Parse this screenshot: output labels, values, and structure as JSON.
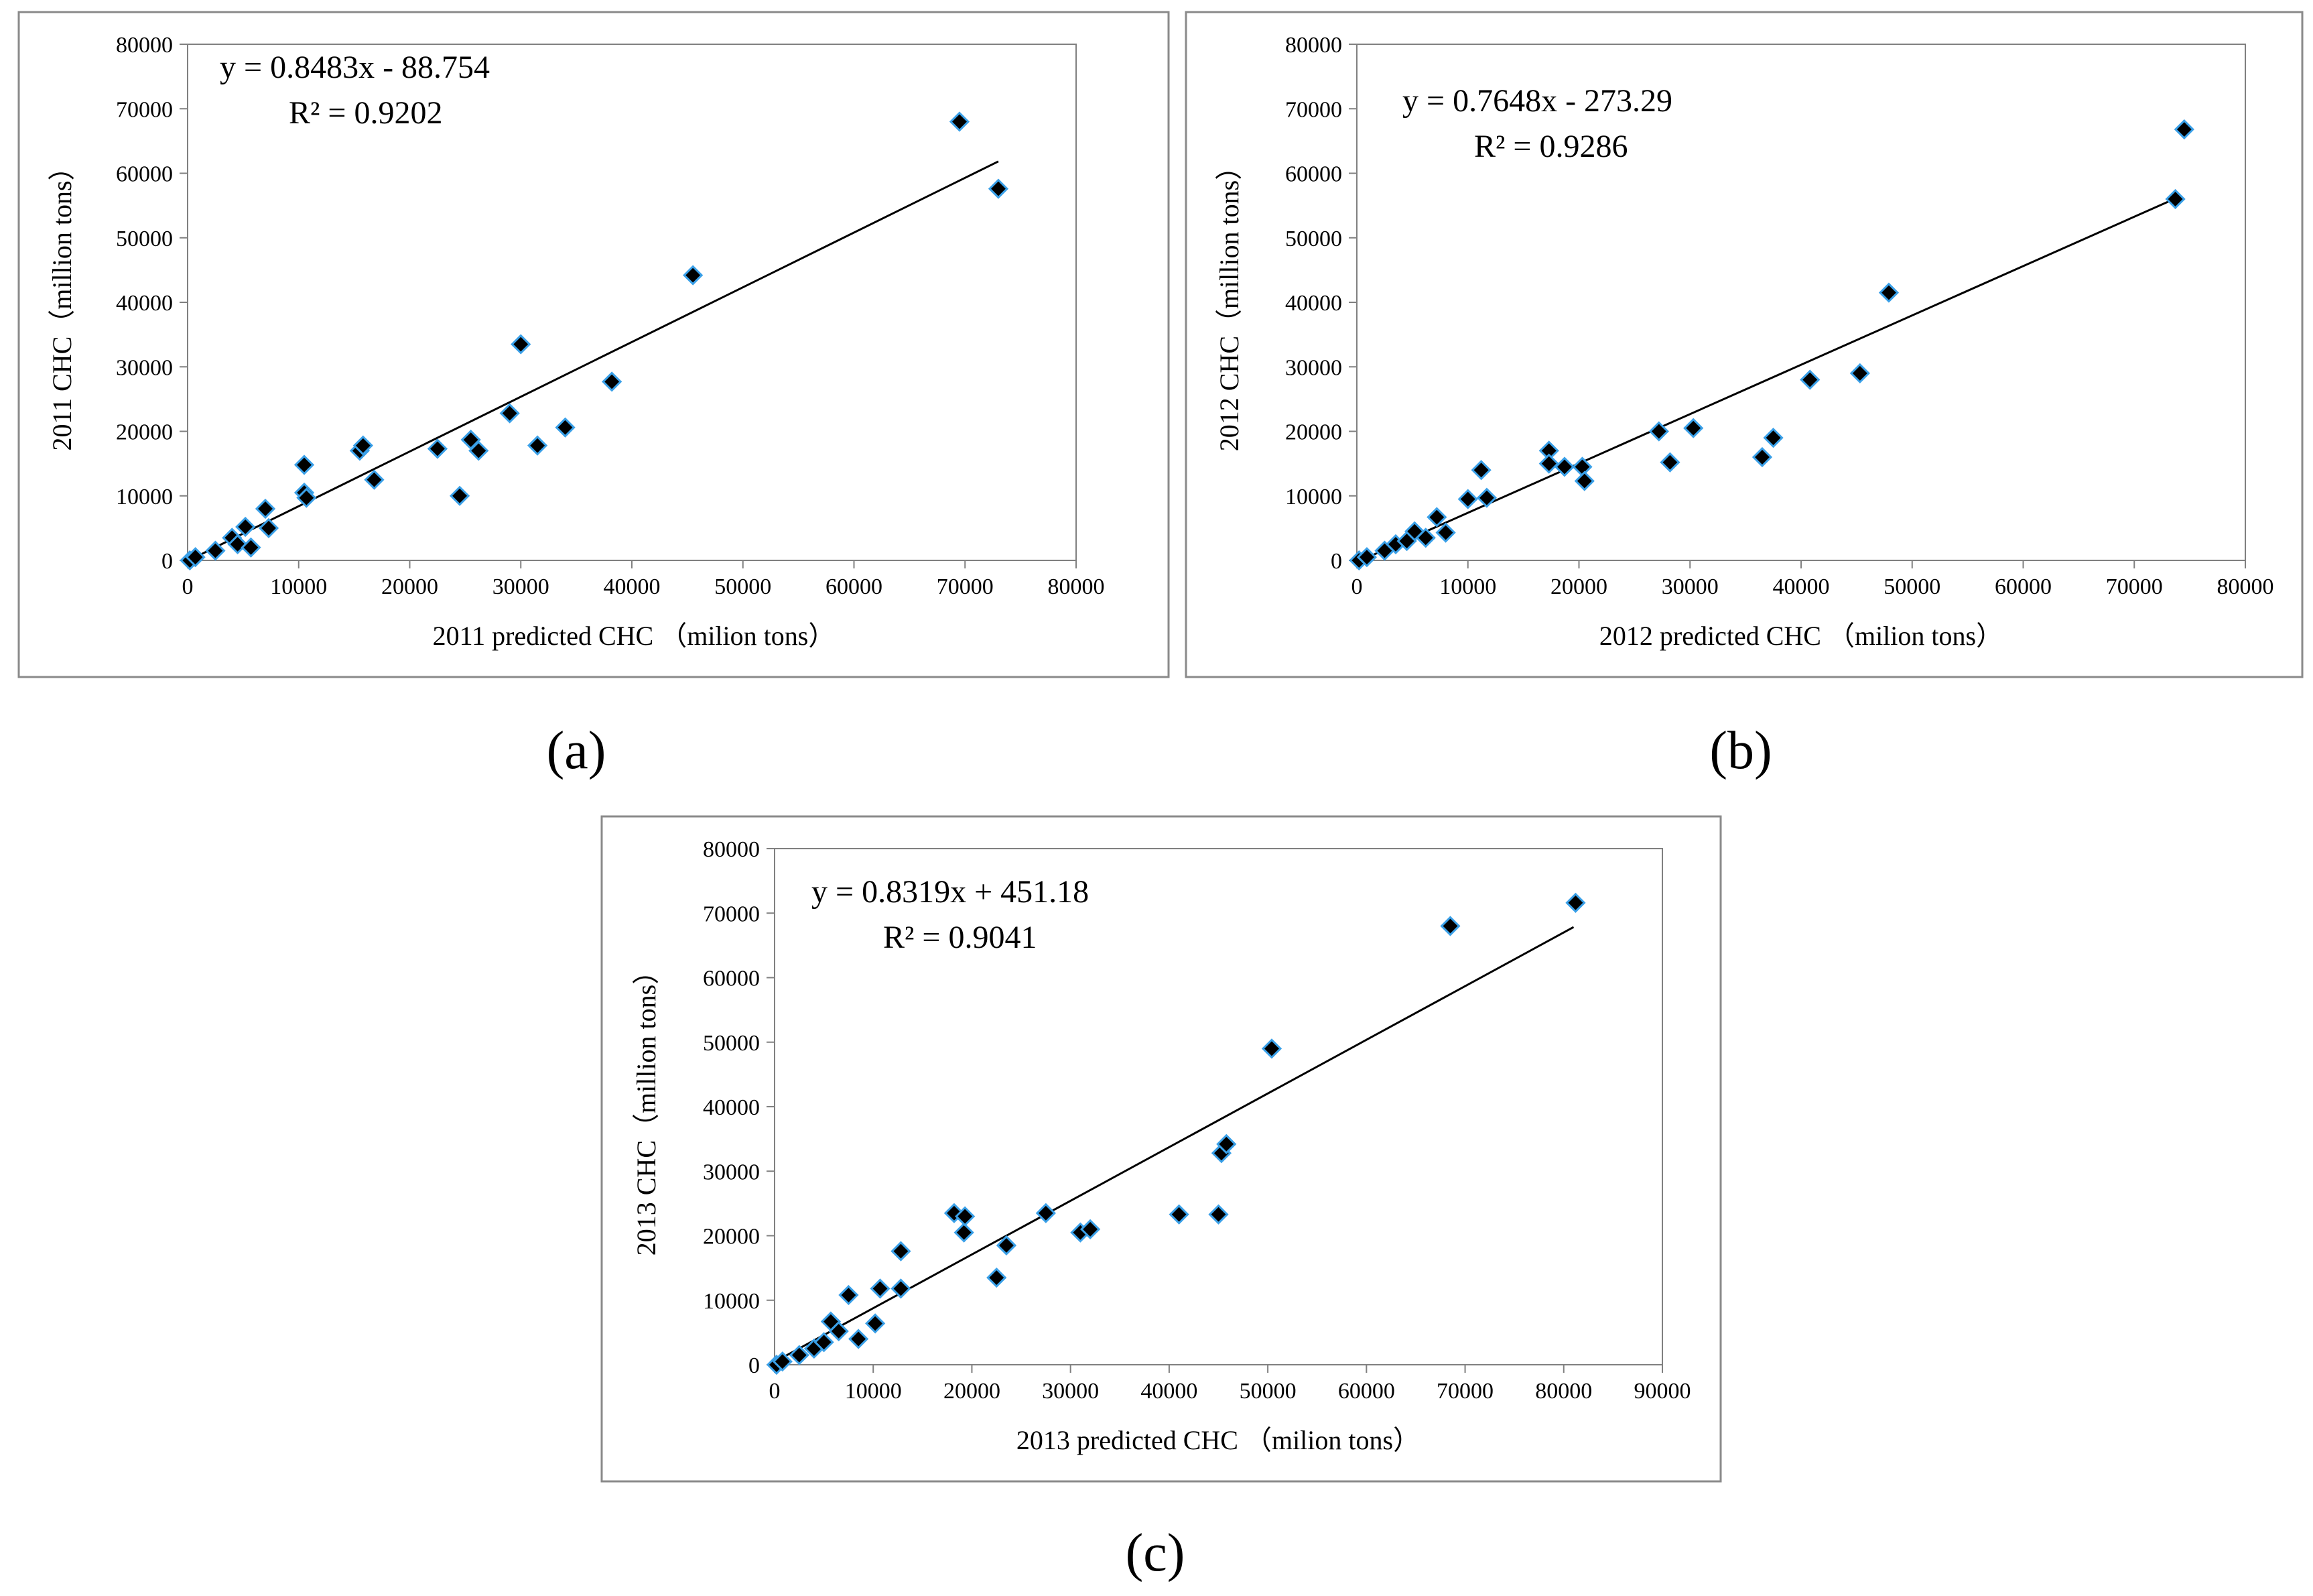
{
  "chart_data": [
    {
      "type": "scatter",
      "panel_label": "(a)",
      "equation": "y = 0.8483x - 88.754",
      "r_squared": "R² = 0.9202",
      "xlabel": "2011 predicted CHC （milion tons）",
      "ylabel": "2011 CHC（million tons）",
      "xlim": [
        0,
        80000
      ],
      "ylim": [
        0,
        80000
      ],
      "xticks": [
        "0",
        "10000",
        "20000",
        "30000",
        "40000",
        "50000",
        "60000",
        "70000",
        "80000"
      ],
      "yticks": [
        "0",
        "10000",
        "20000",
        "30000",
        "40000",
        "50000",
        "60000",
        "70000",
        "80000"
      ],
      "trendline": {
        "slope": 0.8483,
        "intercept": -88.754,
        "x_range": [
          0,
          73000
        ]
      },
      "points": [
        [
          200,
          0
        ],
        [
          700,
          500
        ],
        [
          2500,
          1500
        ],
        [
          4000,
          3500
        ],
        [
          4500,
          2500
        ],
        [
          5200,
          5200
        ],
        [
          5700,
          2000
        ],
        [
          7000,
          8000
        ],
        [
          7300,
          5000
        ],
        [
          10500,
          14800
        ],
        [
          10500,
          10500
        ],
        [
          10700,
          9700
        ],
        [
          15500,
          17000
        ],
        [
          15800,
          17800
        ],
        [
          16800,
          12500
        ],
        [
          22500,
          17300
        ],
        [
          24500,
          10000
        ],
        [
          25500,
          18700
        ],
        [
          26200,
          17000
        ],
        [
          29000,
          22800
        ],
        [
          30000,
          33500
        ],
        [
          31500,
          17800
        ],
        [
          34000,
          20600
        ],
        [
          38200,
          27700
        ],
        [
          45500,
          44200
        ],
        [
          69500,
          68000
        ],
        [
          73000,
          57600
        ]
      ]
    },
    {
      "type": "scatter",
      "panel_label": "(b)",
      "equation": "y = 0.7648x - 273.29",
      "r_squared": "R² = 0.9286",
      "xlabel": "2012 predicted CHC （milion tons）",
      "ylabel": "2012 CHC（million tons）",
      "xlim": [
        0,
        80000
      ],
      "ylim": [
        0,
        80000
      ],
      "xticks": [
        "0",
        "10000",
        "20000",
        "30000",
        "40000",
        "50000",
        "60000",
        "70000",
        "80000"
      ],
      "yticks": [
        "0",
        "10000",
        "20000",
        "30000",
        "40000",
        "50000",
        "60000",
        "70000",
        "80000"
      ],
      "trendline": {
        "slope": 0.7648,
        "intercept": -273.29,
        "x_range": [
          0,
          73500
        ]
      },
      "points": [
        [
          200,
          0
        ],
        [
          900,
          500
        ],
        [
          2500,
          1500
        ],
        [
          3500,
          2500
        ],
        [
          4500,
          3000
        ],
        [
          5200,
          4500
        ],
        [
          6200,
          3500
        ],
        [
          7200,
          6700
        ],
        [
          8000,
          4300
        ],
        [
          10000,
          9500
        ],
        [
          11200,
          14000
        ],
        [
          11700,
          9700
        ],
        [
          17300,
          17000
        ],
        [
          17300,
          15000
        ],
        [
          18700,
          14500
        ],
        [
          20300,
          14500
        ],
        [
          20500,
          12300
        ],
        [
          27200,
          20000
        ],
        [
          28200,
          15200
        ],
        [
          30300,
          20500
        ],
        [
          36500,
          16000
        ],
        [
          37500,
          19000
        ],
        [
          40800,
          28000
        ],
        [
          45300,
          29000
        ],
        [
          47900,
          41500
        ],
        [
          73700,
          56000
        ],
        [
          74500,
          66800
        ]
      ]
    },
    {
      "type": "scatter",
      "panel_label": "(c)",
      "equation": "y = 0.8319x + 451.18",
      "r_squared": "R² = 0.9041",
      "xlabel": "2013 predicted CHC （milion tons）",
      "ylabel": "2013 CHC（million tons）",
      "xlim": [
        0,
        90000
      ],
      "ylim": [
        0,
        80000
      ],
      "xticks": [
        "0",
        "10000",
        "20000",
        "30000",
        "40000",
        "50000",
        "60000",
        "70000",
        "80000",
        "90000"
      ],
      "yticks": [
        "0",
        "10000",
        "20000",
        "30000",
        "40000",
        "50000",
        "60000",
        "70000",
        "80000"
      ],
      "trendline": {
        "slope": 0.8319,
        "intercept": 451.18,
        "x_range": [
          0,
          81000
        ]
      },
      "points": [
        [
          200,
          0
        ],
        [
          800,
          500
        ],
        [
          2500,
          1500
        ],
        [
          4000,
          2500
        ],
        [
          5000,
          3500
        ],
        [
          5700,
          6700
        ],
        [
          6500,
          5200
        ],
        [
          7500,
          10800
        ],
        [
          8500,
          4000
        ],
        [
          10200,
          6400
        ],
        [
          10700,
          11800
        ],
        [
          12800,
          17600
        ],
        [
          12800,
          11800
        ],
        [
          18200,
          23500
        ],
        [
          19200,
          20500
        ],
        [
          19300,
          23000
        ],
        [
          22500,
          13500
        ],
        [
          23500,
          18500
        ],
        [
          27500,
          23500
        ],
        [
          31000,
          20500
        ],
        [
          32000,
          21000
        ],
        [
          41000,
          23300
        ],
        [
          45000,
          23300
        ],
        [
          45300,
          32800
        ],
        [
          45800,
          34200
        ],
        [
          50400,
          49000
        ],
        [
          68500,
          68000
        ],
        [
          81200,
          71600
        ]
      ]
    }
  ]
}
